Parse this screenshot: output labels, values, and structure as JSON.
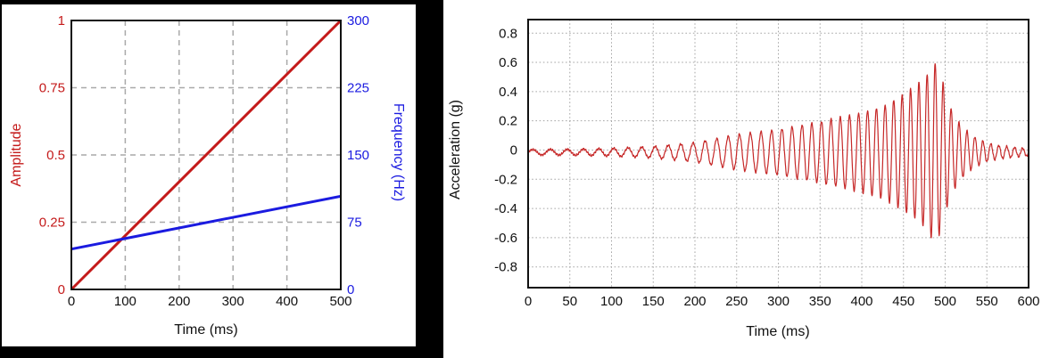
{
  "page": {
    "background": "#ffffff",
    "left_panel_background": "#000000"
  },
  "colors": {
    "red_line": "#c41a1a",
    "blue_line": "#1b1be0",
    "signal_red": "#c62828",
    "grid_dashed": "#a9a9a9",
    "grid_dotted": "#a6a6a6",
    "frame": "#111111",
    "tick_text": "#111111"
  },
  "chart_data": [
    {
      "type": "line",
      "panel": "left",
      "xlabel": "Time (ms)",
      "ylabel_left": "Amplitude",
      "ylabel_right": "Frequency (Hz)",
      "xlim": [
        0,
        500
      ],
      "xticks": [
        "0",
        "100",
        "200",
        "300",
        "400",
        "500"
      ],
      "ylim_left": [
        0,
        1
      ],
      "yticks_left": [
        "0",
        "0.25",
        "0.5",
        "0.75",
        "1"
      ],
      "ylim_right": [
        0,
        300
      ],
      "yticks_right": [
        "0",
        "75",
        "150",
        "225",
        "300"
      ],
      "grid": "dashed",
      "legend": "none",
      "series": [
        {
          "name": "Amplitude",
          "axis": "left",
          "color": "#c41a1a",
          "points": [
            [
              0,
              0
            ],
            [
              500,
              1
            ]
          ]
        },
        {
          "name": "Frequency (Hz)",
          "axis": "right",
          "color": "#1b1be0",
          "points": [
            [
              0,
              45
            ],
            [
              500,
              104
            ]
          ]
        }
      ]
    },
    {
      "type": "line",
      "panel": "right",
      "xlabel": "Time (ms)",
      "ylabel": "Acceleration (g)",
      "xlim": [
        0,
        600
      ],
      "xticks": [
        "0",
        "50",
        "100",
        "150",
        "200",
        "250",
        "300",
        "350",
        "400",
        "450",
        "500",
        "550",
        "600"
      ],
      "ylim": [
        -0.942,
        0.893
      ],
      "yticks": [
        "0.8",
        "0.6",
        "0.4",
        "0.2",
        "0",
        "-0.2",
        "-0.4",
        "-0.6",
        "-0.8"
      ],
      "grid": "dotted",
      "legend": "none",
      "signal": {
        "description": "swept-sine chirp, amplitude grows to peak near 487 ms then decays",
        "color": "#c62828",
        "dc_offset": -0.015,
        "freq_hz": {
          "start": 45,
          "end": 105,
          "sweep_end_ms": 500
        },
        "envelope_keypoints": [
          [
            0,
            0.018
          ],
          [
            50,
            0.02
          ],
          [
            100,
            0.026
          ],
          [
            150,
            0.038
          ],
          [
            200,
            0.065
          ],
          [
            250,
            0.12
          ],
          [
            300,
            0.155
          ],
          [
            350,
            0.21
          ],
          [
            400,
            0.275
          ],
          [
            425,
            0.315
          ],
          [
            450,
            0.4
          ],
          [
            465,
            0.46
          ],
          [
            478,
            0.53
          ],
          [
            487,
            0.62
          ],
          [
            494,
            0.56
          ],
          [
            500,
            0.42
          ],
          [
            505,
            0.33
          ],
          [
            510,
            0.26
          ],
          [
            520,
            0.18
          ],
          [
            530,
            0.125
          ],
          [
            540,
            0.09
          ],
          [
            550,
            0.065
          ],
          [
            560,
            0.05
          ],
          [
            575,
            0.038
          ],
          [
            600,
            0.024
          ]
        ],
        "peak": {
          "t_ms": 487,
          "max_g": 0.61,
          "min_g": -0.66
        }
      }
    }
  ]
}
